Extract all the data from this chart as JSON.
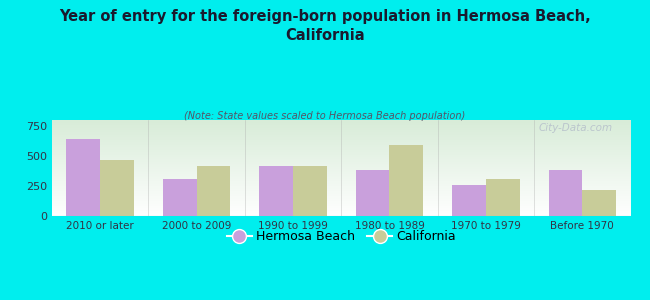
{
  "title": "Year of entry for the foreign-born population in Hermosa Beach,\nCalifornia",
  "subtitle": "(Note: State values scaled to Hermosa Beach population)",
  "categories": [
    "2010 or later",
    "2000 to 2009",
    "1990 to 1999",
    "1980 to 1989",
    "1970 to 1979",
    "Before 1970"
  ],
  "hermosa_beach": [
    640,
    305,
    415,
    380,
    255,
    380
  ],
  "california": [
    465,
    415,
    415,
    590,
    310,
    215
  ],
  "hermosa_color": "#c9a0dc",
  "california_color": "#c8cc99",
  "background_color": "#00eeee",
  "plot_bg_top": "#ffffff",
  "plot_bg_bottom": "#d8ecd8",
  "ylim": [
    0,
    800
  ],
  "yticks": [
    0,
    250,
    500,
    750
  ],
  "bar_width": 0.35,
  "watermark": "City-Data.com",
  "title_color": "#1a1a2e",
  "subtitle_color": "#555566",
  "tick_color": "#333344"
}
